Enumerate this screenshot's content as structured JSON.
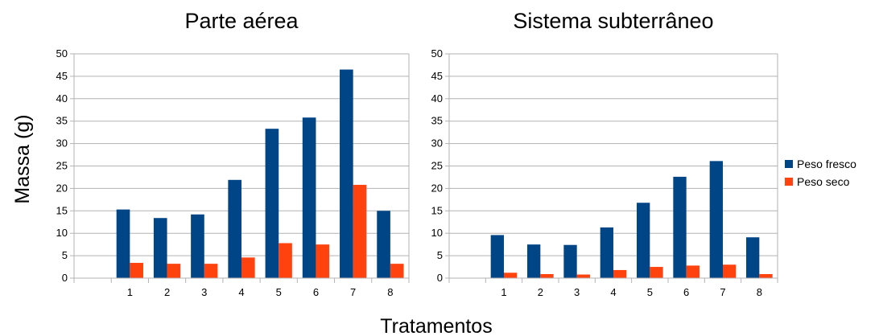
{
  "shared": {
    "ylabel": "Massa (g)",
    "xlabel": "Tratamentos",
    "legend": [
      {
        "name": "Peso fresco",
        "color": "#004586"
      },
      {
        "name": "Peso seco",
        "color": "#ff420e"
      }
    ]
  },
  "chart_data": [
    {
      "type": "bar",
      "title": "Parte aérea",
      "categories": [
        "1",
        "2",
        "3",
        "4",
        "5",
        "6",
        "7",
        "8"
      ],
      "ylim": [
        0,
        50
      ],
      "yticks": [
        "0",
        "5",
        "10",
        "15",
        "20",
        "25",
        "30",
        "35",
        "40",
        "45",
        "50"
      ],
      "grid": true,
      "legend_position": "right",
      "series": [
        {
          "name": "Peso fresco",
          "color": "#004586",
          "values": [
            15.3,
            13.4,
            14.2,
            21.9,
            33.3,
            35.8,
            46.5,
            15.0
          ]
        },
        {
          "name": "Peso seco",
          "color": "#ff420e",
          "values": [
            3.4,
            3.2,
            3.2,
            4.6,
            7.8,
            7.5,
            20.8,
            3.2
          ]
        }
      ]
    },
    {
      "type": "bar",
      "title": "Sistema subterrâneo",
      "categories": [
        "1",
        "2",
        "3",
        "4",
        "5",
        "6",
        "7",
        "8"
      ],
      "ylim": [
        0,
        50
      ],
      "yticks": [
        "0",
        "5",
        "10",
        "15",
        "20",
        "25",
        "30",
        "35",
        "40",
        "45",
        "50"
      ],
      "grid": true,
      "legend_position": "right",
      "series": [
        {
          "name": "Peso fresco",
          "color": "#004586",
          "values": [
            9.6,
            7.5,
            7.4,
            11.3,
            16.8,
            22.6,
            26.1,
            9.1
          ]
        },
        {
          "name": "Peso seco",
          "color": "#ff420e",
          "values": [
            1.2,
            0.9,
            0.8,
            1.8,
            2.5,
            2.8,
            3.0,
            0.9
          ]
        }
      ]
    }
  ]
}
